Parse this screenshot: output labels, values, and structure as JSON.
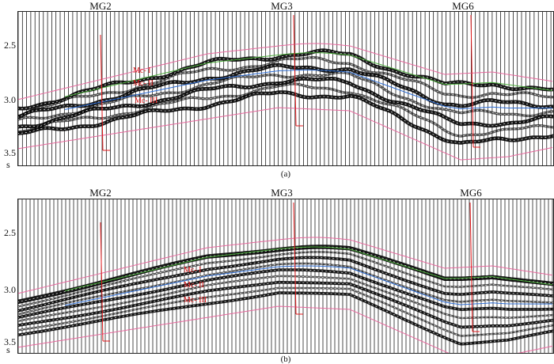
{
  "panels": [
    {
      "id": "a",
      "caption": "(a)",
      "wells": [
        "MG2",
        "MG3",
        "MG6"
      ],
      "y_ticks": [
        "2.5",
        "3.0",
        "3.5"
      ],
      "y_unit": "s",
      "horizons": [
        "Mc- I",
        "Mc- II",
        "Mc- III"
      ]
    },
    {
      "id": "b",
      "caption": "(b)",
      "wells": [
        "MG2",
        "MG3",
        "MG6"
      ],
      "y_ticks": [
        "2.5",
        "3.0",
        "3.5"
      ],
      "y_unit": "s",
      "horizons": [
        "Mc- I",
        "Mc- II",
        "Mc- III"
      ]
    }
  ],
  "colors": {
    "trace": "#000000",
    "boundary": "#e86a9f",
    "horizon_top": "#4cae3c",
    "horizon_mid": "#2f6fd6",
    "well_path": "#e31a1c"
  }
}
